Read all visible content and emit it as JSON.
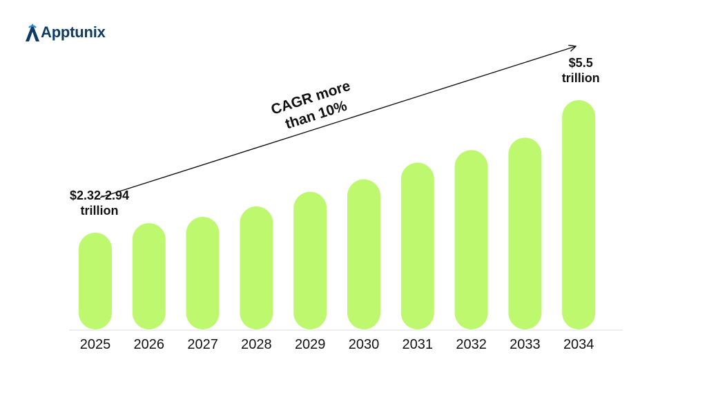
{
  "brand": {
    "name": "Apptunix",
    "color": "#0d3b66",
    "icon": "apptunix-logo-icon"
  },
  "chart_data": {
    "type": "bar",
    "categories": [
      "2025",
      "2026",
      "2027",
      "2028",
      "2029",
      "2030",
      "2031",
      "2032",
      "2033",
      "2034"
    ],
    "values": [
      2.32,
      2.55,
      2.7,
      2.95,
      3.3,
      3.6,
      4.0,
      4.3,
      4.6,
      5.5
    ],
    "unit": "trillion USD",
    "ylim": [
      0,
      5.5
    ],
    "bar_color": "#bdf86e",
    "grid": false,
    "y_axis_visible": false,
    "data_labels": [
      {
        "category": "2025",
        "lines": [
          "$2.32-2.94",
          "trillion"
        ]
      },
      {
        "category": "2034",
        "lines": [
          "$5.5",
          "trillion"
        ]
      }
    ],
    "annotation": {
      "lines": [
        "CAGR more",
        "than 10%"
      ],
      "arrow": "upward trend arrow from 2025 to 2034"
    }
  }
}
